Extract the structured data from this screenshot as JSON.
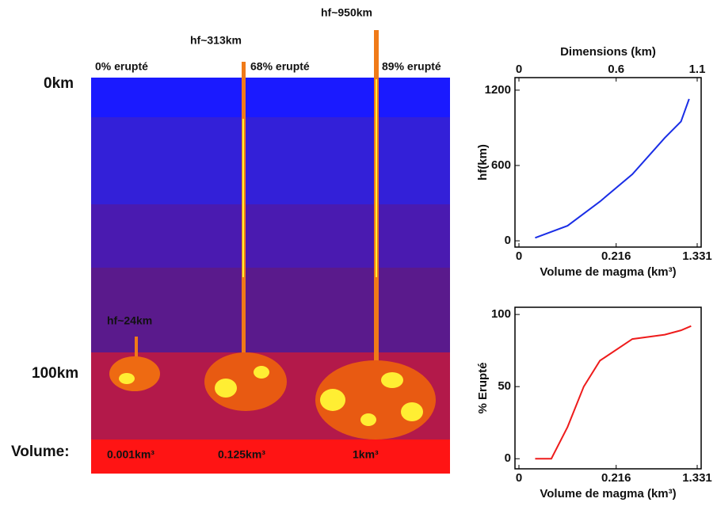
{
  "illustration": {
    "depth_top": "0km",
    "depth_bottom": "100km",
    "volume_label": "Volume:",
    "columns": [
      {
        "erupted": "0% erupté",
        "height": "hf~24km",
        "volume": "0.001km³"
      },
      {
        "erupted": "68% erupté",
        "height": "hf~313km",
        "volume": "0.125km³"
      },
      {
        "erupted": "89% erupté",
        "height": "hf~950km",
        "volume": "1km³"
      }
    ]
  },
  "chart_data": [
    {
      "type": "line",
      "xlabel": "Volume de magma (km³)",
      "ylabel": "hf(km)",
      "x2label": "Dimensions (km)",
      "x": [
        0.001,
        0.027,
        0.125,
        0.343,
        0.729,
        1.0,
        1.158
      ],
      "values": [
        24,
        120,
        313,
        530,
        820,
        950,
        1130
      ],
      "color": "#1a2ee6",
      "xscale": "cbrt",
      "xlim": [
        0,
        1.331
      ],
      "xticks": [
        0,
        0.216,
        1.331
      ],
      "x2lim": [
        0,
        1.1
      ],
      "x2ticks": [
        0,
        0.6,
        1.1
      ],
      "ylim": [
        -50,
        1300
      ],
      "yticks": [
        0,
        600,
        1200
      ]
    },
    {
      "type": "line",
      "xlabel": "Volume de magma (km³)",
      "ylabel": "% Erupté",
      "x": [
        0.001,
        0.008,
        0.027,
        0.064,
        0.125,
        0.343,
        0.729,
        1.0,
        1.2
      ],
      "values": [
        0,
        0,
        22,
        50,
        68,
        83,
        86,
        89,
        92
      ],
      "color": "#ee1c1c",
      "xscale": "cbrt",
      "xlim": [
        0,
        1.331
      ],
      "xticks": [
        0,
        0.216,
        1.331
      ],
      "ylim": [
        -7,
        105
      ],
      "yticks": [
        0,
        50,
        100
      ]
    }
  ]
}
